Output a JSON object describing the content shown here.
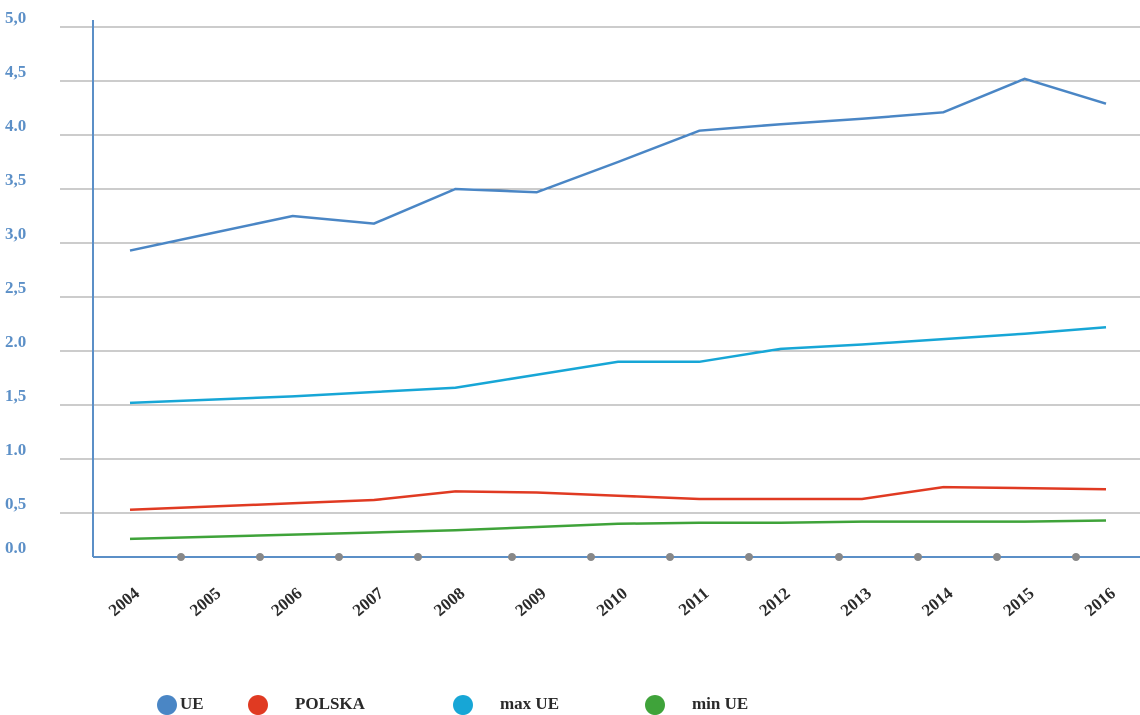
{
  "chart_data": {
    "type": "line",
    "x": [
      2004,
      2005,
      2006,
      2007,
      2008,
      2009,
      2010,
      2011,
      2012,
      2013,
      2014,
      2015,
      2016
    ],
    "series": [
      {
        "name": "UE",
        "color": "#4a86c5",
        "values": [
          2.93,
          3.09,
          3.25,
          3.18,
          3.5,
          3.47,
          3.75,
          4.04,
          4.1,
          4.15,
          4.21,
          4.52,
          4.29
        ]
      },
      {
        "name": "POLSKA",
        "color": "#e03a22",
        "values": [
          0.53,
          0.56,
          0.59,
          0.62,
          0.7,
          0.69,
          0.66,
          0.63,
          0.63,
          0.63,
          0.74,
          0.73,
          0.72
        ]
      },
      {
        "name": "max UE",
        "color": "#17a6d6",
        "values": [
          1.52,
          1.55,
          1.58,
          1.62,
          1.66,
          1.78,
          1.9,
          1.9,
          2.02,
          2.06,
          2.11,
          2.16,
          2.22
        ]
      },
      {
        "name": "min UE",
        "color": "#3fa33a",
        "values": [
          0.26,
          0.28,
          0.3,
          0.32,
          0.34,
          0.37,
          0.4,
          0.41,
          0.41,
          0.42,
          0.42,
          0.42,
          0.43
        ]
      }
    ],
    "xlim": [
      2004,
      2016
    ],
    "ylim": [
      0,
      5
    ],
    "yticks": [
      {
        "value": 0,
        "label": "0.0"
      },
      {
        "value": 0.5,
        "label": "0,5"
      },
      {
        "value": 1,
        "label": "1.0"
      },
      {
        "value": 1.5,
        "label": "1,5"
      },
      {
        "value": 2,
        "label": "2.0"
      },
      {
        "value": 2.5,
        "label": "2,5"
      },
      {
        "value": 3,
        "label": "3,0"
      },
      {
        "value": 3.5,
        "label": "3,5"
      },
      {
        "value": 4,
        "label": "4.0"
      },
      {
        "value": 4.5,
        "label": "4,5"
      },
      {
        "value": 5,
        "label": "5,0"
      }
    ],
    "grid": true,
    "legend": "bottom"
  }
}
